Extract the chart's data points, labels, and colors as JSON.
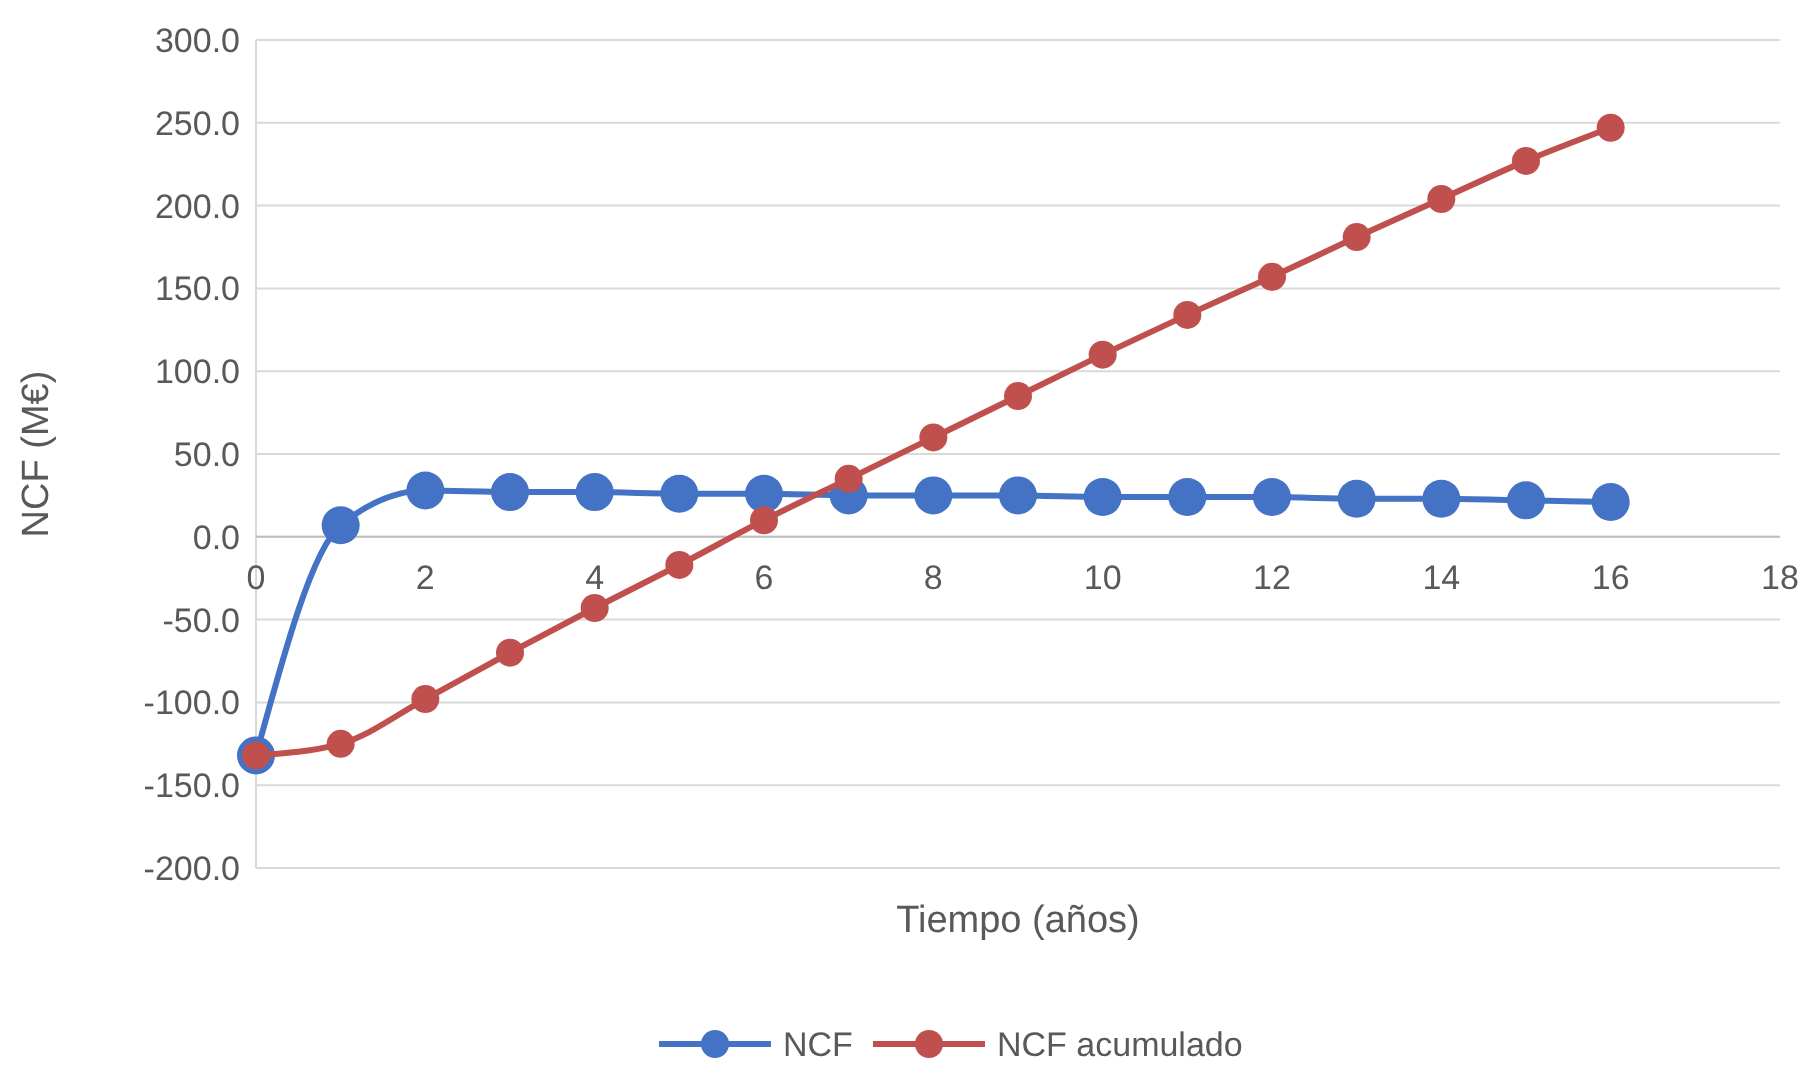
{
  "chart_data": {
    "type": "line",
    "xlabel": "Tiempo (años)",
    "ylabel": "NCF (M€)",
    "x": [
      0,
      1,
      2,
      3,
      4,
      5,
      6,
      7,
      8,
      9,
      10,
      11,
      12,
      13,
      14,
      15,
      16
    ],
    "series": [
      {
        "name": "NCF",
        "color": "#4472c4",
        "values": [
          -132,
          7,
          28,
          27,
          27,
          26,
          26,
          25,
          25,
          25,
          24,
          24,
          24,
          23,
          23,
          22,
          21
        ]
      },
      {
        "name": "NCF acumulado",
        "color": "#c0504d",
        "values": [
          -132,
          -125,
          -98,
          -70,
          -43,
          -17,
          10,
          35,
          60,
          85,
          110,
          134,
          157,
          181,
          204,
          227,
          247
        ]
      }
    ],
    "xlim": [
      0,
      18
    ],
    "xticks": [
      0,
      2,
      4,
      6,
      8,
      10,
      12,
      14,
      16,
      18
    ],
    "ylim": [
      -200,
      300
    ],
    "yticks": [
      {
        "value": -200,
        "label": "-200.0"
      },
      {
        "value": -150,
        "label": "-150.0"
      },
      {
        "value": -100,
        "label": "-100.0"
      },
      {
        "value": -50,
        "label": "-50.0"
      },
      {
        "value": 0,
        "label": "0.0"
      },
      {
        "value": 50,
        "label": "50.0"
      },
      {
        "value": 100,
        "label": "100.0"
      },
      {
        "value": 150,
        "label": "150.0"
      },
      {
        "value": 200,
        "label": "200.0"
      },
      {
        "value": 250,
        "label": "250.0"
      },
      {
        "value": 300,
        "label": "300.0"
      }
    ],
    "grid": "y",
    "legend": "bottom",
    "marker": "circle",
    "line_style": "solid"
  }
}
